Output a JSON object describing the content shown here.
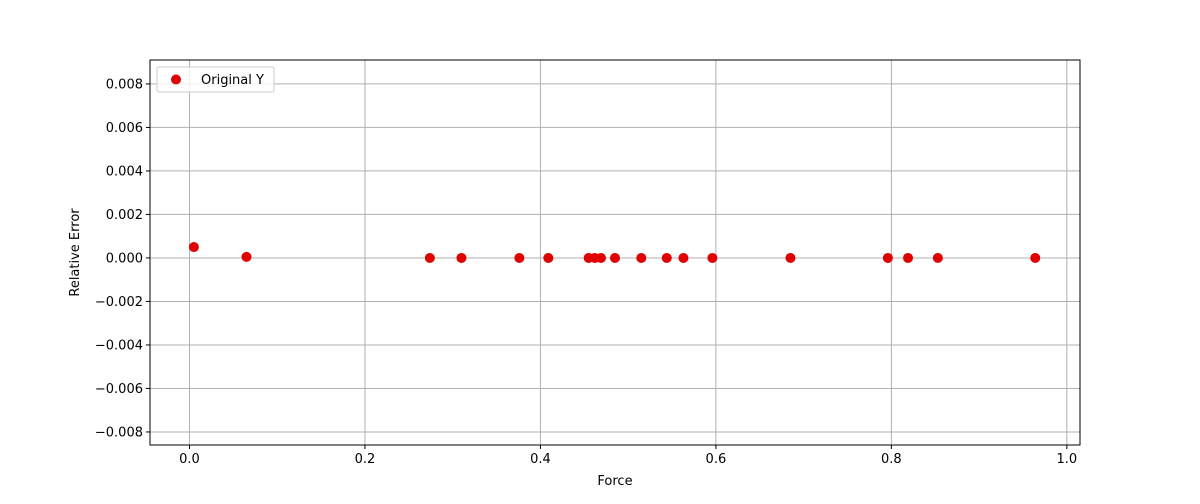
{
  "chart_data": {
    "type": "scatter",
    "title": "",
    "xlabel": "Force",
    "ylabel": "Relative Error",
    "xlim": [
      -0.045,
      1.015
    ],
    "ylim": [
      -0.0086,
      0.0091
    ],
    "xticks": [
      0.0,
      0.2,
      0.4,
      0.6,
      0.8,
      1.0
    ],
    "xtick_labels": [
      "0.0",
      "0.2",
      "0.4",
      "0.6",
      "0.8",
      "1.0"
    ],
    "yticks": [
      -0.008,
      -0.006,
      -0.004,
      -0.002,
      0.0,
      0.002,
      0.004,
      0.006,
      0.008
    ],
    "ytick_labels": [
      "−0.008",
      "−0.006",
      "−0.004",
      "−0.002",
      "0.000",
      "0.002",
      "0.004",
      "0.006",
      "0.008"
    ],
    "grid": true,
    "legend_position": "upper-left",
    "series": [
      {
        "name": "Original Y",
        "color": "#e00000",
        "x": [
          0.005,
          0.065,
          0.274,
          0.31,
          0.376,
          0.409,
          0.455,
          0.462,
          0.469,
          0.485,
          0.515,
          0.544,
          0.563,
          0.596,
          0.685,
          0.796,
          0.819,
          0.853,
          0.964
        ],
        "y": [
          0.0005,
          5e-05,
          0.0,
          0.0,
          0.0,
          0.0,
          0.0,
          0.0,
          0.0,
          0.0,
          0.0,
          0.0,
          0.0,
          0.0,
          0.0,
          0.0,
          0.0,
          0.0,
          0.0
        ]
      }
    ]
  }
}
